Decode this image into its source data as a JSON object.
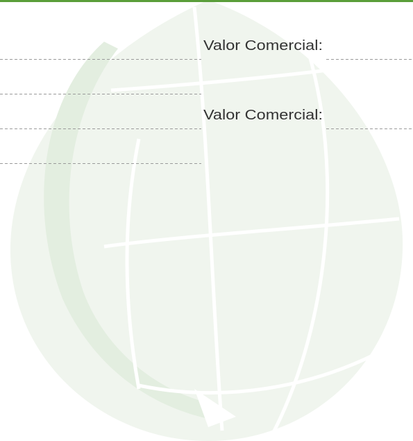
{
  "fields": [
    {
      "label": "Valor Comercial:"
    },
    {
      "label": "Valor Comercial:"
    }
  ]
}
